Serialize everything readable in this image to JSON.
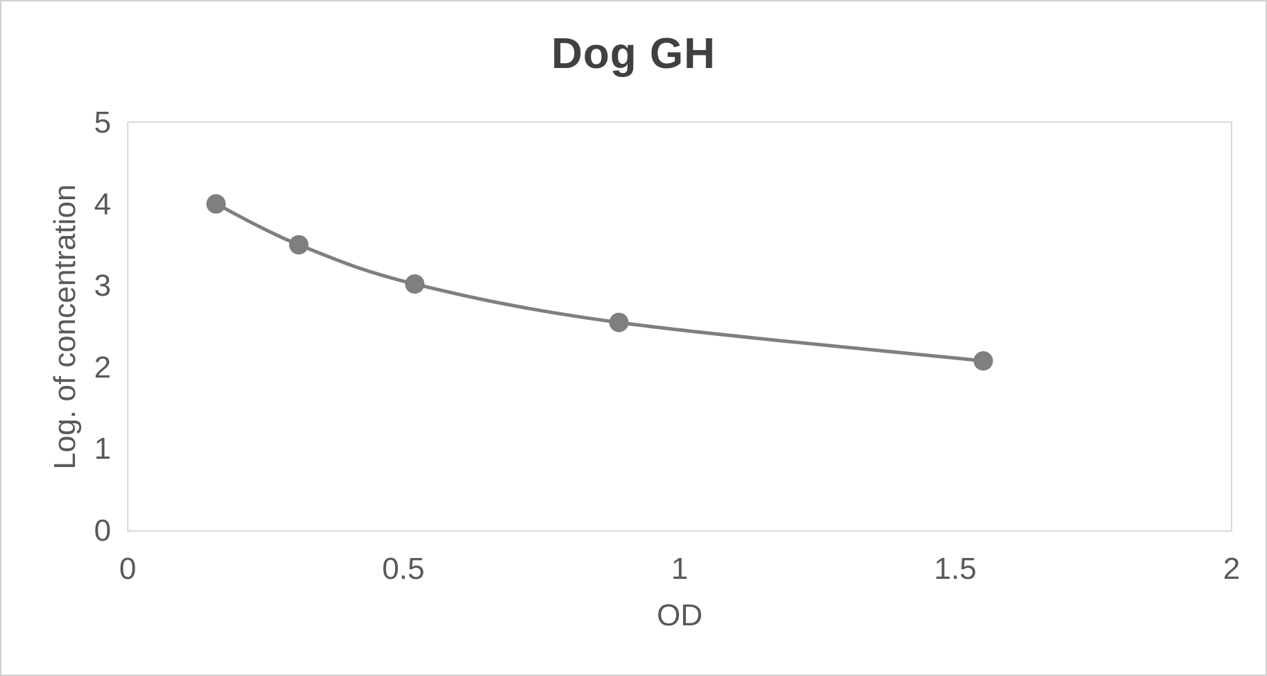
{
  "frame": {
    "background_color": "#FFFFFF",
    "border_color": "#D0D0D0"
  },
  "chart_data": {
    "type": "scatter",
    "title": "Dog GH",
    "xlabel": "OD",
    "ylabel": "Log. of concentration",
    "x": [
      0.16,
      0.31,
      0.52,
      0.89,
      1.55
    ],
    "y": [
      4.0,
      3.5,
      3.02,
      2.55,
      2.08
    ],
    "xlim": [
      0,
      2
    ],
    "ylim": [
      0,
      5
    ],
    "x_ticks": [
      "0",
      "0.5",
      "1",
      "1.5",
      "2"
    ],
    "y_ticks": [
      "0",
      "1",
      "2",
      "3",
      "4",
      "5"
    ],
    "grid": false,
    "legend_position": "none",
    "line_style": "smooth",
    "marker": "circle",
    "colors": {
      "series": "#7F7F7F",
      "axis_text": "#595959",
      "title_text": "#404040",
      "plot_border": "#D9D9D9"
    }
  }
}
